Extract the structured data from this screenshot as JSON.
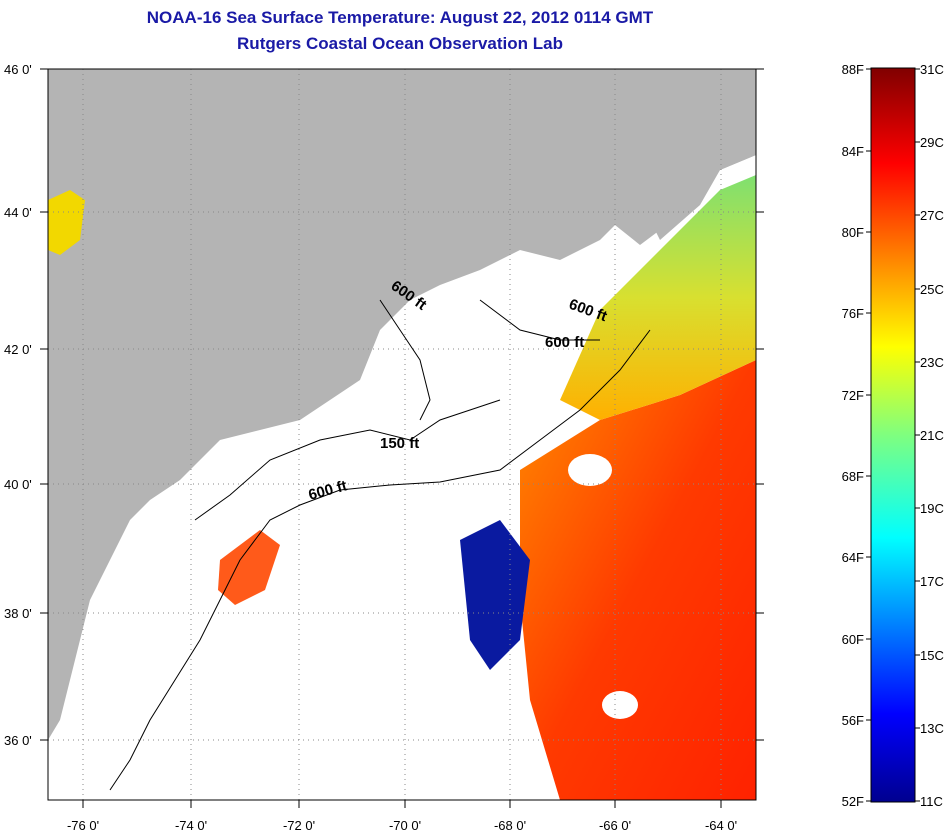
{
  "title": {
    "line1": "NOAA-16 Sea Surface Temperature:  August 22, 2012 0114 GMT",
    "line2": "Rutgers Coastal Ocean Observation Lab"
  },
  "map": {
    "lat_labels": [
      "46 0'",
      "44 0'",
      "42 0'",
      "40 0'",
      "38 0'",
      "36 0'"
    ],
    "lon_labels": [
      "-76 0'",
      "-74 0'",
      "-72 0'",
      "-70 0'",
      "-68 0'",
      "-66 0'",
      "-64 0'"
    ],
    "contour_labels": [
      "600 ft",
      "600 ft",
      "600 ft",
      "150 ft",
      "600 ft"
    ],
    "colors": {
      "land": "#b4b4b4",
      "cloud": "#ffffff",
      "grid": "#888888"
    }
  },
  "colorbar": {
    "f_labels": [
      "88F",
      "84F",
      "80F",
      "76F",
      "72F",
      "68F",
      "64F",
      "60F",
      "56F",
      "52F"
    ],
    "c_labels": [
      "31C",
      "29C",
      "27C",
      "25C",
      "23C",
      "21C",
      "19C",
      "17C",
      "15C",
      "13C",
      "11C"
    ],
    "range_f": [
      52,
      88
    ],
    "range_c": [
      11,
      31
    ]
  }
}
